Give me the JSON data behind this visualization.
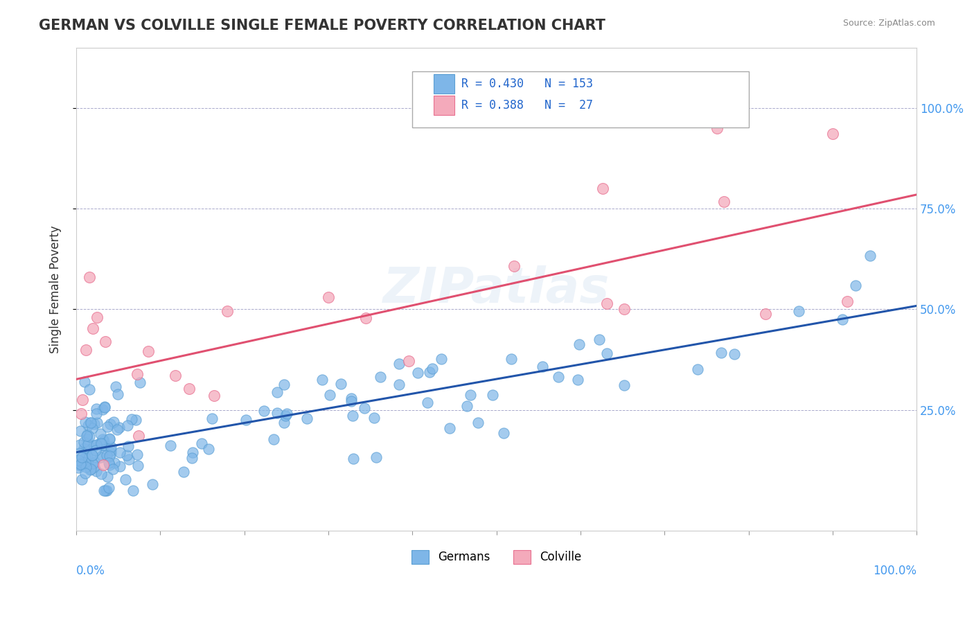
{
  "title": "GERMAN VS COLVILLE SINGLE FEMALE POVERTY CORRELATION CHART",
  "source_text": "Source: ZipAtlas.com",
  "xlabel": "",
  "ylabel": "Single Female Poverty",
  "xlim": [
    0.0,
    1.0
  ],
  "ylim": [
    -0.05,
    1.15
  ],
  "y_ticks": [
    0.25,
    0.5,
    0.75,
    1.0
  ],
  "y_tick_labels": [
    "25.0%",
    "50.0%",
    "75.0%",
    "100.0%"
  ],
  "german_color": "#7EB6E8",
  "german_edge_color": "#5A9FD4",
  "colville_color": "#F4AABB",
  "colville_edge_color": "#E87090",
  "german_line_color": "#2255AA",
  "colville_line_color": "#E05070",
  "german_R": 0.43,
  "german_N": 153,
  "colville_R": 0.388,
  "colville_N": 27,
  "watermark": "ZIPatlas",
  "background_color": "#FFFFFF",
  "title_color": "#333333",
  "title_fontsize": 15,
  "legend_label_german": "Germans",
  "legend_label_colville": "Colville",
  "german_seed": 42,
  "colville_seed": 99
}
